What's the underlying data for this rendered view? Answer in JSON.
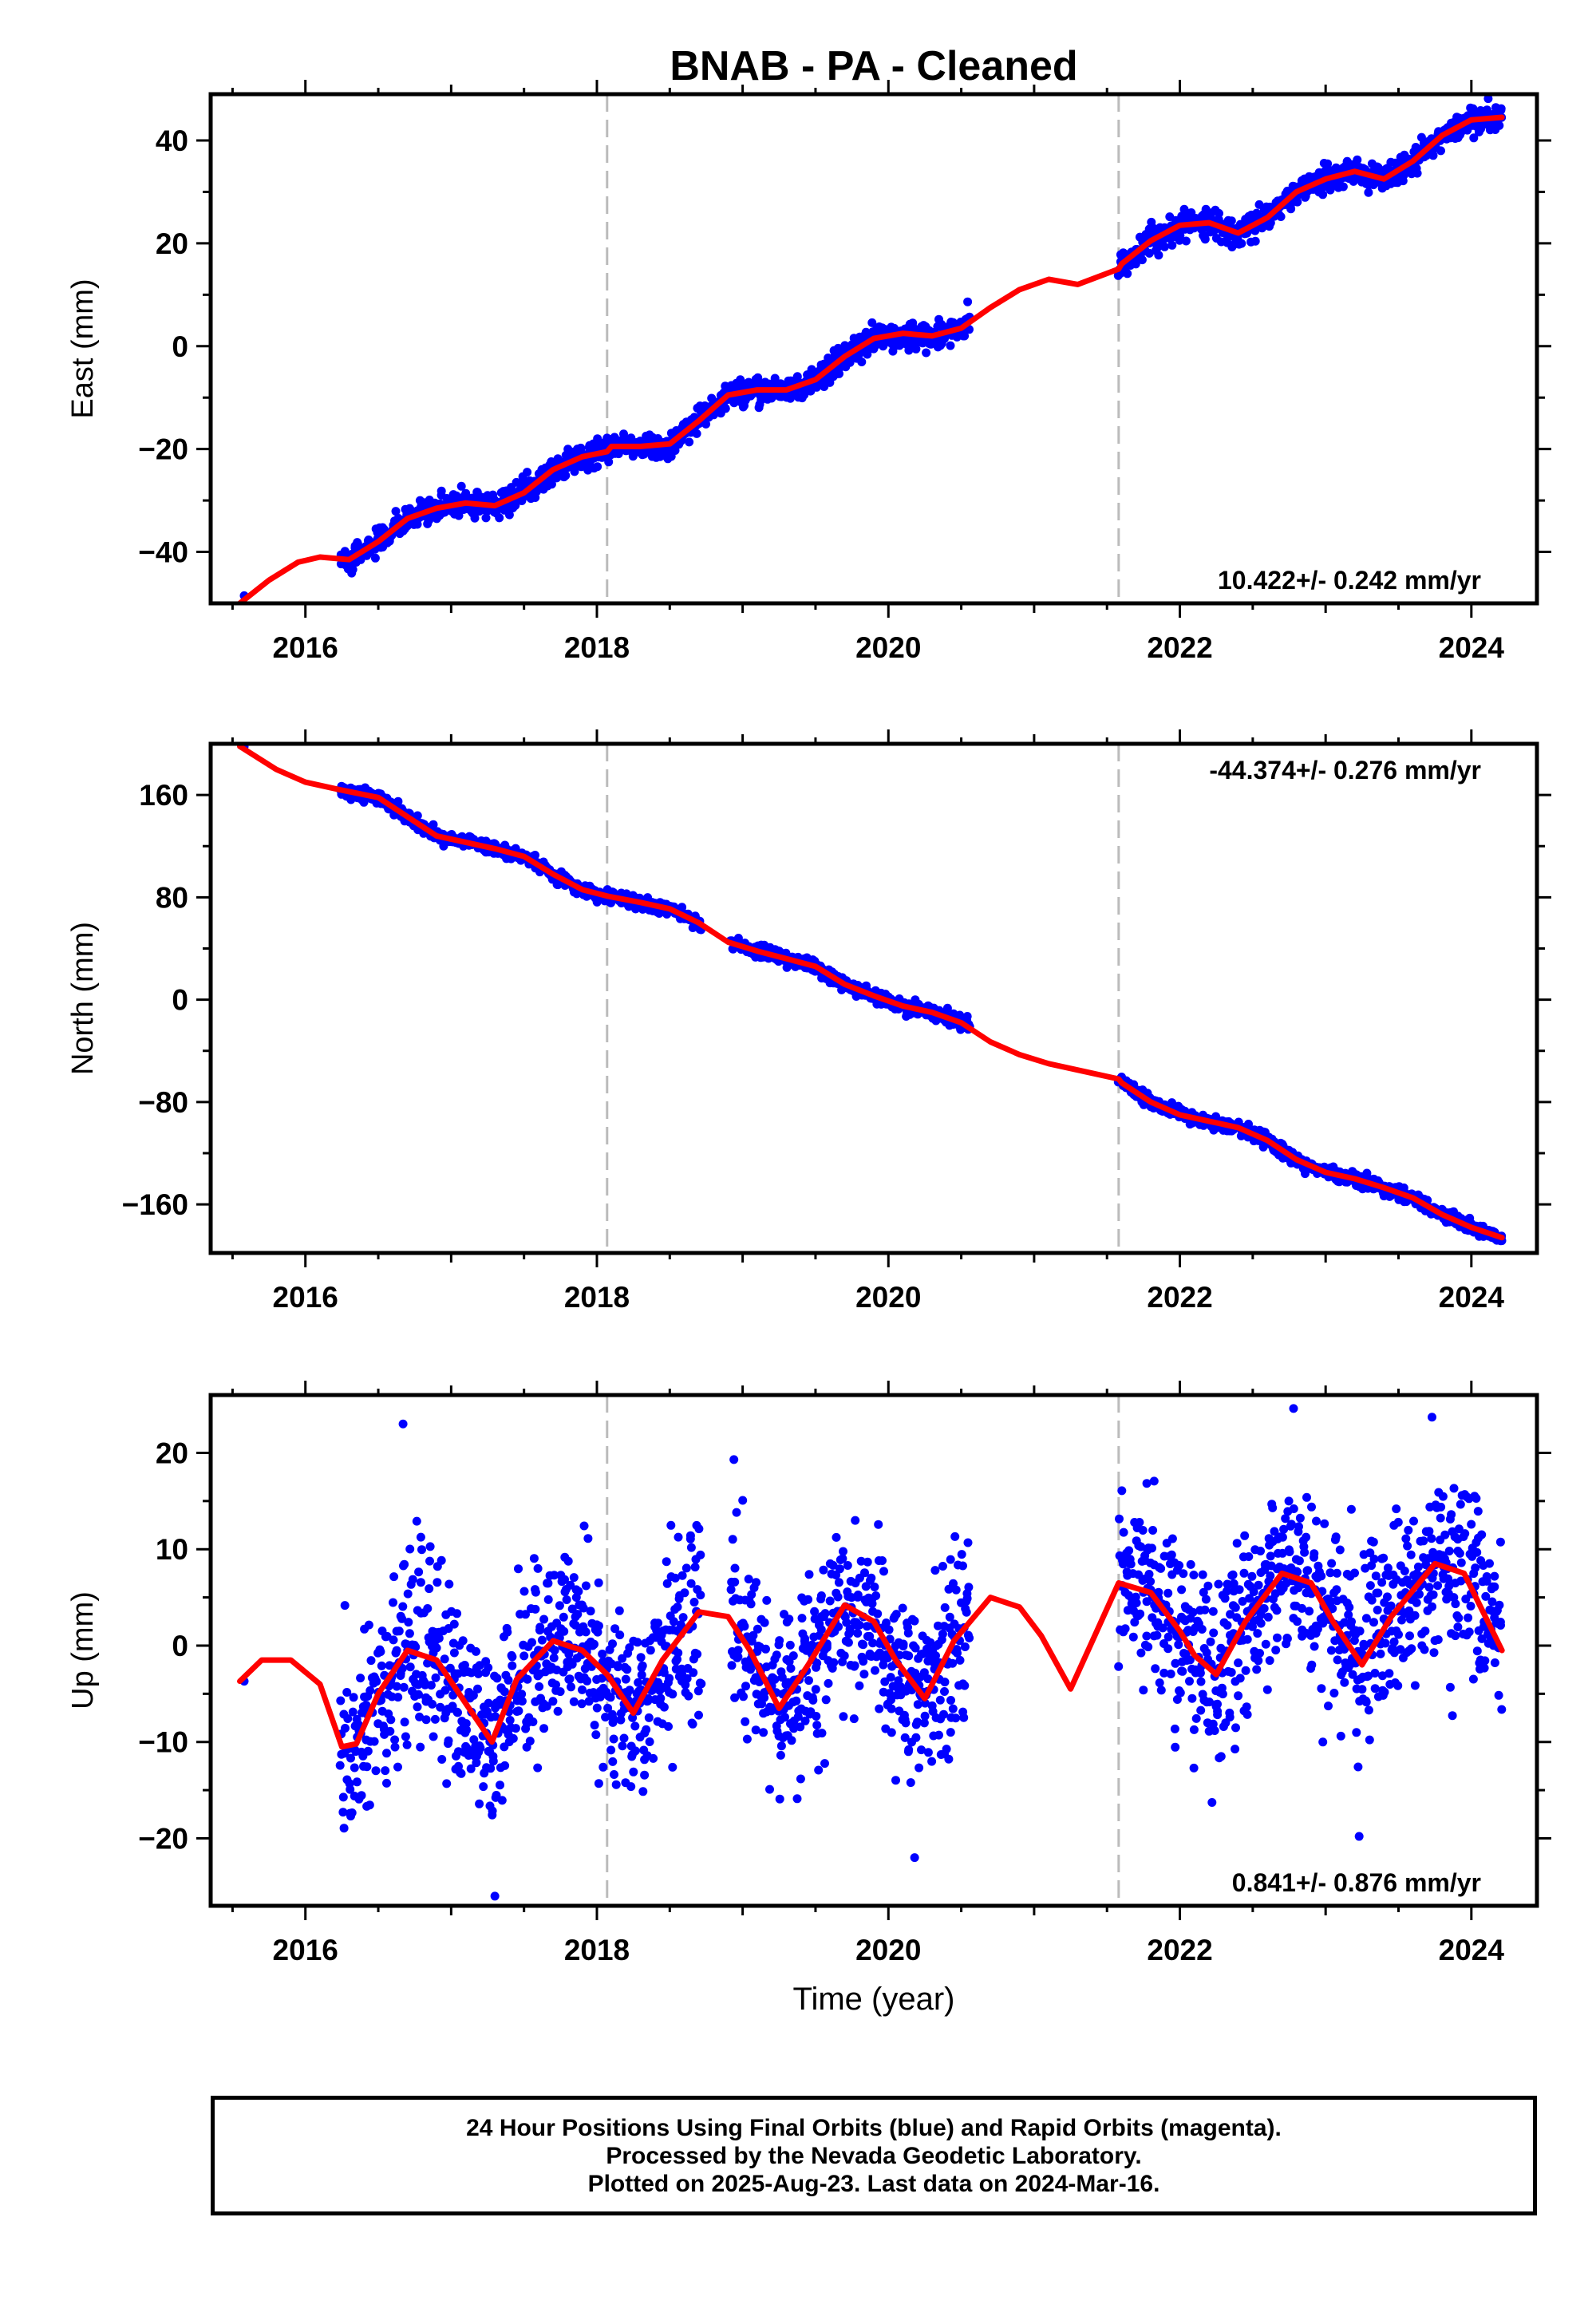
{
  "title": "BNAB  - PA - Cleaned",
  "xlabel": "Time (year)",
  "colors": {
    "points": "#0000ff",
    "fit": "#ff0000",
    "breaks": "#bbbbbb",
    "axes": "#000000"
  },
  "footer": {
    "line1": "24 Hour Positions Using Final Orbits (blue) and Rapid Orbits (magenta).",
    "line2": "Processed by the Nevada Geodetic Laboratory.",
    "line3": "Plotted on 2025-Aug-23. Last data on 2024-Mar-16."
  },
  "chart_data": [
    {
      "type": "scatter",
      "component": "east",
      "ylabel": "East (mm)",
      "rate_text": "10.422+/- 0.242 mm/yr",
      "rate_position": "bottom-right",
      "xlim": [
        2015.35,
        2024.45
      ],
      "ylim": [
        -50,
        49
      ],
      "xticks": [
        2016,
        2018,
        2020,
        2022,
        2024
      ],
      "yticks": [
        40,
        20,
        0,
        -20,
        -40
      ],
      "ytick_labels": [
        "40",
        "20",
        "0",
        "−20",
        "−40"
      ],
      "breaks": [
        2018.07,
        2021.58
      ],
      "data_segments": [
        [
          2016.24,
          2020.56
        ],
        [
          2021.58,
          2024.21
        ]
      ],
      "scatter_noise_mm": 1.2,
      "isolated_points": [
        [
          2015.58,
          -48.5
        ]
      ],
      "fit_line": {
        "x": [
          2015.55,
          2015.75,
          2015.95,
          2016.1,
          2016.3,
          2016.5,
          2016.7,
          2016.9,
          2017.1,
          2017.3,
          2017.5,
          2017.7,
          2017.9,
          2018.07,
          2018.1,
          2018.3,
          2018.5,
          2018.7,
          2018.9,
          2019.1,
          2019.3,
          2019.5,
          2019.7,
          2019.9,
          2020.1,
          2020.3,
          2020.5,
          2020.7,
          2020.9,
          2021.1,
          2021.3,
          2021.58,
          2021.6,
          2021.8,
          2022.0,
          2022.2,
          2022.4,
          2022.6,
          2022.8,
          2023.0,
          2023.2,
          2023.4,
          2023.6,
          2023.8,
          2024.0,
          2024.21
        ],
        "y": [
          -50,
          -45.5,
          -42,
          -41,
          -41.5,
          -38,
          -33.5,
          -31.5,
          -30.5,
          -31,
          -28.5,
          -24,
          -21.5,
          -20.5,
          -19.5,
          -19.5,
          -19,
          -14.5,
          -9.5,
          -8.5,
          -8.5,
          -6.5,
          -2,
          1.5,
          2.5,
          2,
          3.5,
          7.5,
          11,
          13,
          12,
          15,
          16,
          20.5,
          23.5,
          24,
          22,
          25,
          30,
          32.5,
          34,
          32.5,
          36,
          41,
          44,
          44.5
        ]
      }
    },
    {
      "type": "scatter",
      "component": "north",
      "ylabel": "North (mm)",
      "rate_text": "-44.374+/- 0.276 mm/yr",
      "rate_position": "top-right",
      "xlim": [
        2015.35,
        2024.45
      ],
      "ylim": [
        -198,
        200
      ],
      "xticks": [
        2016,
        2018,
        2020,
        2022,
        2024
      ],
      "yticks": [
        160,
        80,
        0,
        -80,
        -160
      ],
      "ytick_labels": [
        "160",
        "80",
        "0",
        "−80",
        "−160"
      ],
      "breaks": [
        2018.07,
        2021.58
      ],
      "data_segments": [
        [
          2016.24,
          2018.72
        ],
        [
          2018.92,
          2020.56
        ],
        [
          2021.58,
          2024.21
        ]
      ],
      "scatter_noise_mm": 2.5,
      "isolated_points": [
        [
          2015.58,
          198
        ]
      ],
      "fit_line": {
        "x": [
          2015.55,
          2015.8,
          2016.0,
          2016.24,
          2016.5,
          2016.7,
          2016.9,
          2017.1,
          2017.3,
          2017.5,
          2017.7,
          2017.9,
          2018.07,
          2018.3,
          2018.5,
          2018.7,
          2018.9,
          2019.1,
          2019.3,
          2019.5,
          2019.7,
          2019.9,
          2020.1,
          2020.3,
          2020.5,
          2020.7,
          2020.9,
          2021.1,
          2021.3,
          2021.58,
          2021.6,
          2021.8,
          2022.0,
          2022.2,
          2022.4,
          2022.6,
          2022.8,
          2023.0,
          2023.2,
          2023.4,
          2023.6,
          2023.8,
          2024.0,
          2024.21
        ],
        "y": [
          198,
          180,
          170,
          164,
          158,
          143,
          128,
          123,
          118,
          112,
          98,
          86,
          81,
          76,
          71,
          60,
          45,
          38,
          32,
          26,
          12,
          3,
          -5,
          -10,
          -18,
          -33,
          -43,
          -50,
          -55,
          -62,
          -65,
          -80,
          -90,
          -95,
          -100,
          -110,
          -125,
          -135,
          -140,
          -147,
          -155,
          -168,
          -178,
          -186
        ]
      }
    },
    {
      "type": "scatter",
      "component": "up",
      "ylabel": "Up (mm)",
      "rate_text": "0.841+/- 0.876 mm/yr",
      "rate_position": "bottom-right",
      "xlim": [
        2015.35,
        2024.45
      ],
      "ylim": [
        -27,
        26
      ],
      "xticks": [
        2016,
        2018,
        2020,
        2022,
        2024
      ],
      "yticks": [
        20,
        10,
        0,
        -10,
        -20
      ],
      "ytick_labels": [
        "20",
        "10",
        "0",
        "−10",
        "−20"
      ],
      "breaks": [
        2018.07,
        2021.58
      ],
      "data_segments": [
        [
          2016.24,
          2018.72
        ],
        [
          2018.92,
          2020.56
        ],
        [
          2021.58,
          2024.21
        ]
      ],
      "scatter_noise_mm": 4.8,
      "isolated_points": [
        [
          2015.58,
          -3.7
        ],
        [
          2016.67,
          23
        ],
        [
          2017.3,
          -26
        ],
        [
          2018.94,
          19.3
        ],
        [
          2020.18,
          -22
        ],
        [
          2022.78,
          24.6
        ],
        [
          2023.23,
          -19.8
        ],
        [
          2023.73,
          23.7
        ]
      ],
      "fit_line": {
        "x": [
          2015.55,
          2015.7,
          2015.9,
          2016.1,
          2016.25,
          2016.35,
          2016.5,
          2016.7,
          2016.9,
          2017.1,
          2017.28,
          2017.45,
          2017.7,
          2017.9,
          2018.07,
          2018.25,
          2018.45,
          2018.7,
          2018.9,
          2019.05,
          2019.25,
          2019.45,
          2019.7,
          2019.9,
          2020.05,
          2020.25,
          2020.45,
          2020.7,
          2020.9,
          2021.05,
          2021.25,
          2021.4,
          2021.58,
          2021.8,
          2022.0,
          2022.1,
          2022.25,
          2022.45,
          2022.7,
          2022.9,
          2023.05,
          2023.25,
          2023.45,
          2023.75,
          2023.95,
          2024.21
        ],
        "y": [
          -3.7,
          -1.5,
          -1.5,
          -4,
          -10.5,
          -10.2,
          -5,
          -0.5,
          -1.5,
          -6,
          -10,
          -3.5,
          0.5,
          -0.5,
          -3,
          -7,
          -1.5,
          3.5,
          3,
          -0.5,
          -6.5,
          -2,
          4.2,
          2.5,
          -1.5,
          -5.5,
          0.5,
          5,
          4,
          1,
          -4.5,
          0.5,
          6.5,
          5.5,
          1.5,
          -1,
          -3,
          2.5,
          7.5,
          6.5,
          2.5,
          -2,
          3,
          8.5,
          7.5,
          -0.5
        ]
      }
    }
  ]
}
